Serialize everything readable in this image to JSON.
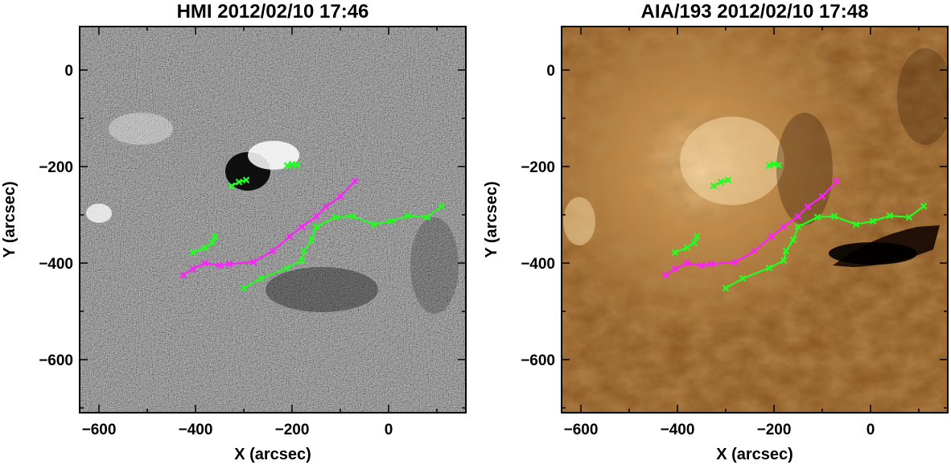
{
  "chart_data": [
    {
      "type": "line",
      "background": "magnetogram",
      "title": "HMI 2012/02/10 17:46",
      "xlabel": "X (arcsec)",
      "ylabel": "Y (arcsec)",
      "xlim": [
        -640,
        160
      ],
      "ylim": [
        -710,
        90
      ],
      "xticks": [
        -600,
        -400,
        -200,
        0
      ],
      "yticks": [
        0,
        -200,
        -400,
        -600
      ],
      "xtick_labels": [
        "−600",
        "−400",
        "−200",
        "0"
      ],
      "ytick_labels": [
        "0",
        "−200",
        "−400",
        "−600"
      ],
      "grid": false,
      "series": [
        {
          "color": "#ff20ff",
          "marker": "x",
          "x": [
            -425,
            -405,
            -380,
            -350,
            -330,
            -280,
            -240,
            -205,
            -180,
            -150,
            -130,
            -100,
            -70
          ],
          "y": [
            -425,
            -412,
            -400,
            -405,
            -402,
            -398,
            -375,
            -345,
            -325,
            -303,
            -283,
            -262,
            -230
          ]
        },
        {
          "color": "#20ff20",
          "marker": "x",
          "x": [
            -300,
            -265,
            -210,
            -180,
            -175,
            -160,
            -150,
            -110,
            -75,
            -30,
            5,
            40,
            80,
            110
          ],
          "y": [
            -452,
            -432,
            -410,
            -395,
            -375,
            -352,
            -325,
            -305,
            -303,
            -320,
            -313,
            -302,
            -305,
            -282
          ]
        },
        {
          "color": "#20ff20",
          "marker": "x",
          "x": [
            -405,
            -380,
            -365,
            -360
          ],
          "y": [
            -378,
            -368,
            -358,
            -345
          ]
        },
        {
          "color": "#20ff20",
          "marker": "x",
          "x": [
            -325,
            -310,
            -295
          ],
          "y": [
            -240,
            -232,
            -228
          ]
        },
        {
          "color": "#20ff20",
          "marker": "x",
          "x": [
            -210,
            -200,
            -190
          ],
          "y": [
            -198,
            -195,
            -197
          ]
        }
      ]
    },
    {
      "type": "line",
      "background": "euv-193",
      "title": "AIA/193 2012/02/10 17:48",
      "xlabel": "X (arcsec)",
      "ylabel": "Y (arcsec)",
      "xlim": [
        -640,
        160
      ],
      "ylim": [
        -710,
        90
      ],
      "xticks": [
        -600,
        -400,
        -200,
        0
      ],
      "yticks": [
        0,
        -200,
        -400,
        -600
      ],
      "xtick_labels": [
        "−600",
        "−400",
        "−200",
        "0"
      ],
      "ytick_labels": [
        "0",
        "−200",
        "−400",
        "−600"
      ],
      "grid": false,
      "series": [
        {
          "color": "#ff20ff",
          "marker": "x",
          "x": [
            -425,
            -405,
            -380,
            -350,
            -330,
            -280,
            -240,
            -205,
            -180,
            -150,
            -130,
            -100,
            -70
          ],
          "y": [
            -425,
            -412,
            -400,
            -405,
            -402,
            -398,
            -375,
            -345,
            -325,
            -303,
            -283,
            -262,
            -230
          ]
        },
        {
          "color": "#20ff20",
          "marker": "x",
          "x": [
            -300,
            -265,
            -210,
            -180,
            -175,
            -160,
            -150,
            -110,
            -75,
            -30,
            5,
            40,
            80,
            110
          ],
          "y": [
            -452,
            -432,
            -410,
            -395,
            -375,
            -352,
            -325,
            -305,
            -303,
            -320,
            -313,
            -302,
            -305,
            -282
          ]
        },
        {
          "color": "#20ff20",
          "marker": "x",
          "x": [
            -405,
            -380,
            -365,
            -360
          ],
          "y": [
            -378,
            -368,
            -358,
            -345
          ]
        },
        {
          "color": "#20ff20",
          "marker": "x",
          "x": [
            -325,
            -310,
            -295
          ],
          "y": [
            -240,
            -232,
            -228
          ]
        },
        {
          "color": "#20ff20",
          "marker": "x",
          "x": [
            -210,
            -200,
            -190
          ],
          "y": [
            -198,
            -195,
            -197
          ]
        }
      ]
    }
  ]
}
